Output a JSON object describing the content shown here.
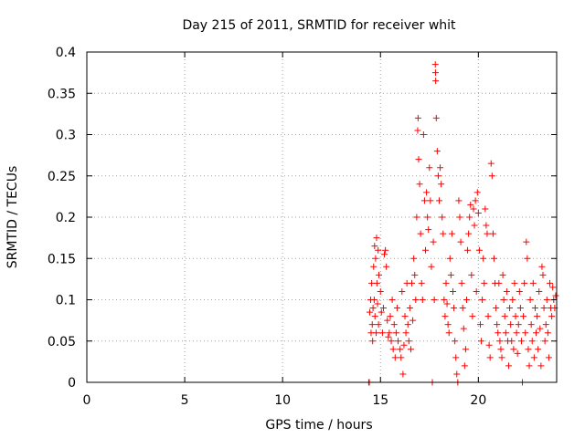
{
  "chart_data": {
    "type": "scatter",
    "title": "Day 215 of 2011, SRMTID for receiver whit",
    "xlabel": "GPS time / hours",
    "ylabel": "SRMTID / TECUs",
    "xlim": [
      0,
      24
    ],
    "ylim": [
      0,
      0.4
    ],
    "xticks": [
      0,
      5,
      10,
      15,
      20
    ],
    "xtick_labels": [
      "0",
      "5",
      "10",
      "15",
      "20"
    ],
    "yticks": [
      0,
      0.05,
      0.1,
      0.15,
      0.2,
      0.25,
      0.3,
      0.35,
      0.4
    ],
    "ytick_labels": [
      "0",
      "0.05",
      "0.1",
      "0.15",
      "0.2",
      "0.25",
      "0.3",
      "0.35",
      "0.4"
    ],
    "grid": true,
    "marker": "plus",
    "series": [
      {
        "name": "SRMTID",
        "color": "#ff0000",
        "points": [
          [
            14.4,
            0.0
          ],
          [
            14.43,
            0.0
          ],
          [
            14.45,
            0.085
          ],
          [
            14.5,
            0.1
          ],
          [
            14.52,
            0.06
          ],
          [
            14.55,
            0.12
          ],
          [
            14.58,
            0.07
          ],
          [
            14.6,
            0.05
          ],
          [
            14.62,
            0.09
          ],
          [
            14.65,
            0.14
          ],
          [
            14.68,
            0.1
          ],
          [
            14.7,
            0.165
          ],
          [
            14.72,
            0.08
          ],
          [
            14.75,
            0.15
          ],
          [
            14.78,
            0.06
          ],
          [
            14.8,
            0.175
          ],
          [
            14.82,
            0.12
          ],
          [
            14.85,
            0.095
          ],
          [
            14.88,
            0.16
          ],
          [
            14.9,
            0.07
          ],
          [
            14.92,
            0.13
          ],
          [
            15.0,
            0.11
          ],
          [
            15.05,
            0.085
          ],
          [
            15.1,
            0.06
          ],
          [
            15.15,
            0.09
          ],
          [
            15.2,
            0.155
          ],
          [
            15.25,
            0.16
          ],
          [
            15.3,
            0.14
          ],
          [
            15.35,
            0.075
          ],
          [
            15.4,
            0.055
          ],
          [
            15.45,
            0.06
          ],
          [
            15.5,
            0.08
          ],
          [
            15.55,
            0.05
          ],
          [
            15.6,
            0.1
          ],
          [
            15.65,
            0.04
          ],
          [
            15.7,
            0.07
          ],
          [
            15.75,
            0.03
          ],
          [
            15.8,
            0.06
          ],
          [
            15.85,
            0.09
          ],
          [
            15.9,
            0.05
          ],
          [
            16.0,
            0.04
          ],
          [
            16.05,
            0.03
          ],
          [
            16.1,
            0.11
          ],
          [
            16.15,
            0.01
          ],
          [
            16.2,
            0.045
          ],
          [
            16.25,
            0.08
          ],
          [
            16.3,
            0.06
          ],
          [
            16.35,
            0.12
          ],
          [
            16.4,
            0.07
          ],
          [
            16.45,
            0.05
          ],
          [
            16.5,
            0.09
          ],
          [
            16.55,
            0.04
          ],
          [
            16.6,
            0.12
          ],
          [
            16.65,
            0.075
          ],
          [
            16.7,
            0.15
          ],
          [
            16.75,
            0.13
          ],
          [
            16.8,
            0.1
          ],
          [
            16.85,
            0.2
          ],
          [
            16.9,
            0.305
          ],
          [
            16.92,
            0.32
          ],
          [
            16.95,
            0.27
          ],
          [
            17.0,
            0.24
          ],
          [
            17.05,
            0.18
          ],
          [
            17.1,
            0.12
          ],
          [
            17.15,
            0.1
          ],
          [
            17.2,
            0.3
          ],
          [
            17.25,
            0.22
          ],
          [
            17.3,
            0.16
          ],
          [
            17.35,
            0.23
          ],
          [
            17.4,
            0.2
          ],
          [
            17.45,
            0.185
          ],
          [
            17.5,
            0.26
          ],
          [
            17.55,
            0.22
          ],
          [
            17.6,
            0.14
          ],
          [
            17.65,
            0.0
          ],
          [
            17.7,
            0.17
          ],
          [
            17.75,
            0.1
          ],
          [
            17.8,
            0.385
          ],
          [
            17.81,
            0.375
          ],
          [
            17.82,
            0.365
          ],
          [
            17.85,
            0.32
          ],
          [
            17.9,
            0.28
          ],
          [
            17.95,
            0.25
          ],
          [
            18.0,
            0.22
          ],
          [
            18.05,
            0.26
          ],
          [
            18.1,
            0.24
          ],
          [
            18.15,
            0.2
          ],
          [
            18.2,
            0.18
          ],
          [
            18.25,
            0.1
          ],
          [
            18.3,
            0.08
          ],
          [
            18.35,
            0.12
          ],
          [
            18.4,
            0.095
          ],
          [
            18.45,
            0.07
          ],
          [
            18.5,
            0.06
          ],
          [
            18.55,
            0.15
          ],
          [
            18.6,
            0.13
          ],
          [
            18.65,
            0.18
          ],
          [
            18.7,
            0.11
          ],
          [
            18.75,
            0.09
          ],
          [
            18.8,
            0.05
          ],
          [
            18.85,
            0.03
          ],
          [
            18.9,
            0.01
          ],
          [
            18.95,
            0.0
          ],
          [
            19.0,
            0.22
          ],
          [
            19.05,
            0.2
          ],
          [
            19.1,
            0.17
          ],
          [
            19.15,
            0.12
          ],
          [
            19.2,
            0.09
          ],
          [
            19.25,
            0.065
          ],
          [
            19.3,
            0.02
          ],
          [
            19.35,
            0.04
          ],
          [
            19.4,
            0.1
          ],
          [
            19.45,
            0.16
          ],
          [
            19.5,
            0.18
          ],
          [
            19.55,
            0.2
          ],
          [
            19.6,
            0.215
          ],
          [
            19.65,
            0.13
          ],
          [
            19.7,
            0.08
          ],
          [
            19.75,
            0.21
          ],
          [
            19.8,
            0.19
          ],
          [
            19.85,
            0.22
          ],
          [
            19.9,
            0.11
          ],
          [
            19.95,
            0.23
          ],
          [
            20.0,
            0.205
          ],
          [
            20.05,
            0.16
          ],
          [
            20.1,
            0.07
          ],
          [
            20.15,
            0.05
          ],
          [
            20.2,
            0.1
          ],
          [
            20.25,
            0.15
          ],
          [
            20.3,
            0.12
          ],
          [
            20.35,
            0.21
          ],
          [
            20.4,
            0.19
          ],
          [
            20.45,
            0.18
          ],
          [
            20.5,
            0.08
          ],
          [
            20.55,
            0.045
          ],
          [
            20.6,
            0.03
          ],
          [
            20.65,
            0.265
          ],
          [
            20.7,
            0.25
          ],
          [
            20.75,
            0.18
          ],
          [
            20.8,
            0.15
          ],
          [
            20.85,
            0.12
          ],
          [
            20.9,
            0.09
          ],
          [
            20.95,
            0.07
          ],
          [
            21.0,
            0.06
          ],
          [
            21.05,
            0.12
          ],
          [
            21.1,
            0.05
          ],
          [
            21.15,
            0.04
          ],
          [
            21.2,
            0.03
          ],
          [
            21.25,
            0.13
          ],
          [
            21.3,
            0.1
          ],
          [
            21.35,
            0.08
          ],
          [
            21.4,
            0.06
          ],
          [
            21.45,
            0.11
          ],
          [
            21.5,
            0.05
          ],
          [
            21.55,
            0.02
          ],
          [
            21.6,
            0.09
          ],
          [
            21.65,
            0.07
          ],
          [
            21.7,
            0.05
          ],
          [
            21.75,
            0.1
          ],
          [
            21.8,
            0.04
          ],
          [
            21.85,
            0.12
          ],
          [
            21.9,
            0.08
          ],
          [
            21.95,
            0.06
          ],
          [
            22.0,
            0.035
          ],
          [
            22.05,
            0.07
          ],
          [
            22.1,
            0.11
          ],
          [
            22.15,
            0.09
          ],
          [
            22.2,
            0.05
          ],
          [
            22.25,
            0.0
          ],
          [
            22.3,
            0.08
          ],
          [
            22.35,
            0.12
          ],
          [
            22.4,
            0.06
          ],
          [
            22.45,
            0.17
          ],
          [
            22.5,
            0.15
          ],
          [
            22.55,
            0.04
          ],
          [
            22.6,
            0.02
          ],
          [
            22.65,
            0.1
          ],
          [
            22.7,
            0.07
          ],
          [
            22.75,
            0.05
          ],
          [
            22.8,
            0.12
          ],
          [
            22.85,
            0.03
          ],
          [
            22.9,
            0.09
          ],
          [
            22.95,
            0.06
          ],
          [
            23.0,
            0.08
          ],
          [
            23.05,
            0.04
          ],
          [
            23.1,
            0.11
          ],
          [
            23.15,
            0.065
          ],
          [
            23.2,
            0.02
          ],
          [
            23.25,
            0.14
          ],
          [
            23.3,
            0.13
          ],
          [
            23.35,
            0.09
          ],
          [
            23.4,
            0.05
          ],
          [
            23.45,
            0.07
          ],
          [
            23.5,
            0.1
          ],
          [
            23.55,
            0.06
          ],
          [
            23.6,
            0.03
          ],
          [
            23.65,
            0.12
          ],
          [
            23.7,
            0.09
          ],
          [
            23.75,
            0.08
          ],
          [
            23.8,
            0.115
          ],
          [
            23.85,
            0.1
          ],
          [
            23.9,
            0.09
          ],
          [
            23.95,
            0.105
          ]
        ]
      }
    ]
  }
}
